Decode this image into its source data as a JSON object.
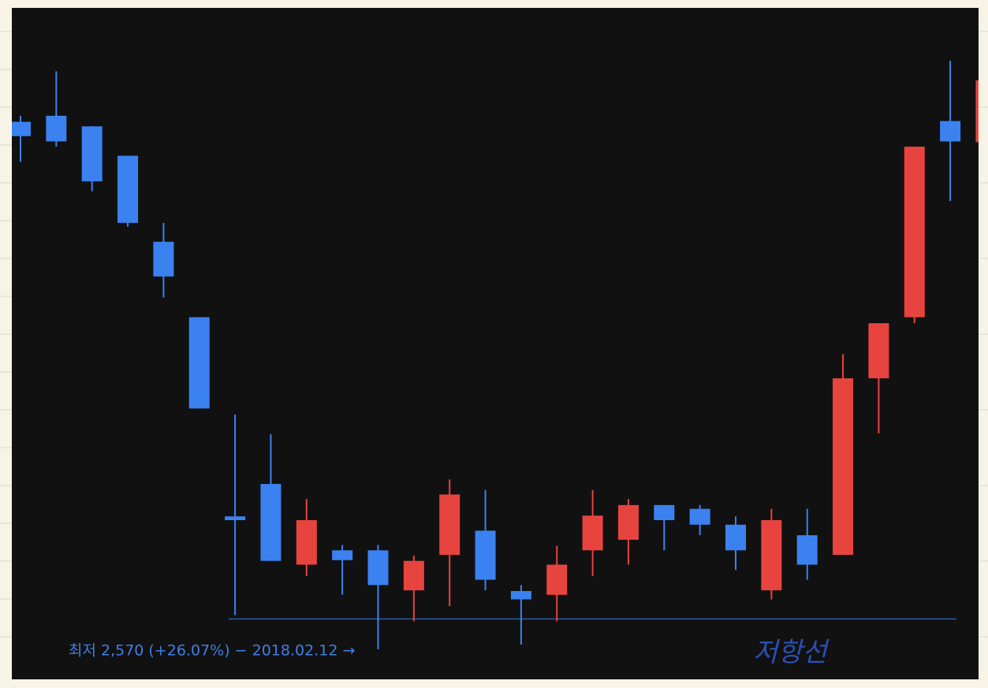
{
  "chart_data": {
    "type": "candlestick",
    "ylim": [
      2530,
      3420
    ],
    "up_color": "#e8443f",
    "down_color": "#3b82f0",
    "candles": [
      {
        "open": 3269,
        "high": 3277,
        "low": 3216,
        "close": 3250
      },
      {
        "open": 3277,
        "high": 3336,
        "low": 3236,
        "close": 3243
      },
      {
        "open": 3263,
        "high": 3263,
        "low": 3177,
        "close": 3190
      },
      {
        "open": 3224,
        "high": 3224,
        "low": 3130,
        "close": 3135
      },
      {
        "open": 3110,
        "high": 3135,
        "low": 3036,
        "close": 3064
      },
      {
        "open": 3010,
        "high": 3010,
        "low": 2889,
        "close": 2889
      },
      {
        "open": 2746,
        "high": 2881,
        "low": 2615,
        "close": 2741
      },
      {
        "open": 2789,
        "high": 2855,
        "low": 2687,
        "close": 2687
      },
      {
        "open": 2682,
        "high": 2769,
        "low": 2667,
        "close": 2741
      },
      {
        "open": 2701,
        "high": 2708,
        "low": 2642,
        "close": 2688
      },
      {
        "open": 2701,
        "high": 2708,
        "low": 2570,
        "close": 2655
      },
      {
        "open": 2648,
        "high": 2694,
        "low": 2607,
        "close": 2687
      },
      {
        "open": 2695,
        "high": 2795,
        "low": 2627,
        "close": 2775
      },
      {
        "open": 2727,
        "high": 2781,
        "low": 2648,
        "close": 2662
      },
      {
        "open": 2647,
        "high": 2655,
        "low": 2576,
        "close": 2636
      },
      {
        "open": 2642,
        "high": 2707,
        "low": 2607,
        "close": 2682
      },
      {
        "open": 2701,
        "high": 2781,
        "low": 2667,
        "close": 2747
      },
      {
        "open": 2715,
        "high": 2769,
        "low": 2682,
        "close": 2761
      },
      {
        "open": 2761,
        "high": 2761,
        "low": 2701,
        "close": 2741
      },
      {
        "open": 2756,
        "high": 2761,
        "low": 2721,
        "close": 2735
      },
      {
        "open": 2735,
        "high": 2746,
        "low": 2675,
        "close": 2701
      },
      {
        "open": 2648,
        "high": 2756,
        "low": 2636,
        "close": 2741
      },
      {
        "open": 2721,
        "high": 2756,
        "low": 2662,
        "close": 2682
      },
      {
        "open": 2695,
        "high": 2961,
        "low": 2695,
        "close": 2929
      },
      {
        "open": 2929,
        "high": 3002,
        "low": 2856,
        "close": 3002
      },
      {
        "open": 3010,
        "high": 3236,
        "low": 3002,
        "close": 3236
      },
      {
        "open": 3270,
        "high": 3350,
        "low": 3164,
        "close": 3243
      },
      {
        "open": 3242,
        "high": 3324,
        "low": 3242,
        "close": 3324
      }
    ],
    "annotation": "최저 2,570 (+26.07%) − 2018.02.12 →",
    "reference_line": {
      "value": 2610,
      "label": "저항선"
    }
  }
}
